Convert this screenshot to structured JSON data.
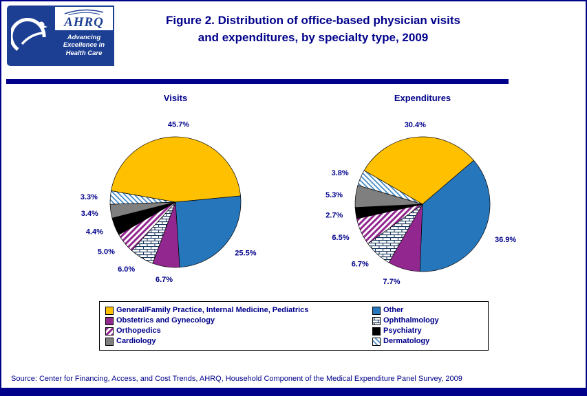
{
  "page": {
    "title_line1": "Figure 2. Distribution of office-based physician visits",
    "title_line2": "and expenditures, by specialty type, 2009",
    "source": "Source: Center for Financing, Access, and Cost Trends, AHRQ, Household Component of the Medical Expenditure Panel Survey, 2009"
  },
  "logo": {
    "ahrq_name": "AHRQ",
    "tagline_line1": "Advancing",
    "tagline_line2": "Excellence in",
    "tagline_line3": "Health Care"
  },
  "colors": {
    "title_text": "#00008B",
    "rule_bar": "#00008B",
    "logo_blue": "#1C3F94",
    "legend_border": "#000000",
    "slice_outline": "#000000",
    "label_text": "#00008B",
    "slices": {
      "gold": "#FFC000",
      "blue": "#2676BC",
      "purple": "#92278F",
      "black": "#000000",
      "gray": "#7F7F7F"
    }
  },
  "patterns": {
    "brick": {
      "bg": "#FFFFFF",
      "line": "#17375E"
    },
    "stripe_purple": {
      "bg": "#FFFFFF",
      "line": "#92278F"
    },
    "stripe_blue": {
      "bg": "#FFFFFF",
      "line": "#2676BC"
    }
  },
  "chart_data": {
    "type": "pie",
    "title": "Figure 2. Distribution of office-based physician visits and expenditures, by specialty type, 2009",
    "categories": [
      "General/Family Practice, Internal Medicine, Pediatrics",
      "Other",
      "Obstetrics and Gynecology",
      "Ophthalmology",
      "Orthopedics",
      "Psychiatry",
      "Cardiology",
      "Dermatology"
    ],
    "fills": [
      "gold",
      "blue",
      "purple",
      "brick",
      "stripe_purple",
      "black",
      "gray",
      "stripe_blue"
    ],
    "series": [
      {
        "name": "Visits",
        "values": [
          45.7,
          25.5,
          6.7,
          6.0,
          5.0,
          4.4,
          3.4,
          3.3
        ]
      },
      {
        "name": "Expenditures",
        "values": [
          30.4,
          36.9,
          7.7,
          6.7,
          6.5,
          2.7,
          5.3,
          3.8
        ]
      }
    ],
    "value_unit": "%",
    "start_angles": [
      -80,
      -60
    ],
    "legend_position": "bottom"
  }
}
